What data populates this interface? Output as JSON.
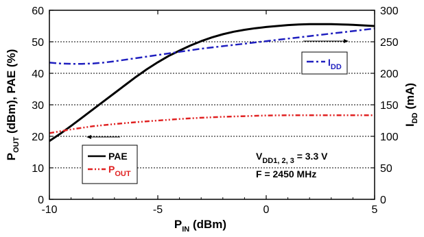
{
  "chart_data": {
    "type": "line",
    "x_axis": {
      "label_main": "P",
      "label_sub": "IN",
      "label_unit": " (dBm)",
      "range": [
        -10,
        5
      ],
      "ticks": [
        -10,
        -5,
        0,
        5
      ]
    },
    "y_left": {
      "label_parts": [
        {
          "t": "P"
        },
        {
          "t": "OUT",
          "sub": true
        },
        {
          "t": " (dBm), PAE (%)"
        }
      ],
      "range": [
        0,
        60
      ],
      "ticks": [
        0,
        10,
        20,
        30,
        40,
        50,
        60
      ]
    },
    "y_right": {
      "label_main": "I",
      "label_sub": "DD",
      "label_unit": " (mA)",
      "range": [
        0,
        300
      ],
      "ticks": [
        0,
        50,
        100,
        150,
        200,
        250,
        300
      ]
    },
    "grid": "horizontal-dotted",
    "series": [
      {
        "key": "pae",
        "axis": "left",
        "color": "#000000",
        "style": "solid",
        "x": [
          -10,
          -9.5,
          -9,
          -8.5,
          -8,
          -7.5,
          -7,
          -6.5,
          -6,
          -5.5,
          -5,
          -4.5,
          -4,
          -3.5,
          -3,
          -2.5,
          -2,
          -1.5,
          -1,
          -0.5,
          0,
          0.5,
          1,
          1.5,
          2,
          2.5,
          3,
          3.5,
          4,
          4.5,
          5
        ],
        "y": [
          18.5,
          20.8,
          23.3,
          25.9,
          28.5,
          31.1,
          33.7,
          36.3,
          38.9,
          41.3,
          43.5,
          45.5,
          47.2,
          48.8,
          50.2,
          51.4,
          52.4,
          53.2,
          53.8,
          54.3,
          54.7,
          55.0,
          55.3,
          55.5,
          55.6,
          55.6,
          55.6,
          55.5,
          55.4,
          55.2,
          55.0
        ]
      },
      {
        "key": "pout",
        "axis": "left",
        "color": "#e02020",
        "style": "dash-dot-dot",
        "x": [
          -10,
          -9,
          -8,
          -7,
          -6,
          -5,
          -4,
          -3,
          -2,
          -1,
          0,
          1,
          2,
          3,
          4,
          5
        ],
        "y": [
          21.0,
          22.2,
          23.2,
          23.9,
          24.5,
          25.0,
          25.5,
          25.9,
          26.2,
          26.4,
          26.6,
          26.7,
          26.7,
          26.7,
          26.7,
          26.7
        ]
      },
      {
        "key": "idd",
        "axis": "right",
        "color": "#1f1fbf",
        "style": "dash-dot",
        "x": [
          -10,
          -9.5,
          -9,
          -8.5,
          -8,
          -7.5,
          -7,
          -6.5,
          -6,
          -5.5,
          -5,
          -4.5,
          -4,
          -3.5,
          -3,
          -2.5,
          -2,
          -1.5,
          -1,
          -0.5,
          0,
          0.5,
          1,
          1.5,
          2,
          2.5,
          3,
          3.5,
          4,
          4.5,
          5
        ],
        "y": [
          217,
          215.5,
          215,
          215,
          215.5,
          217,
          219,
          221.5,
          224,
          226.5,
          229,
          231.5,
          234,
          236.5,
          239,
          241,
          243,
          245,
          247,
          249,
          251,
          253,
          255,
          257,
          259,
          261,
          263,
          265,
          267,
          269,
          271
        ]
      }
    ],
    "legend_main": {
      "entries": [
        {
          "series": "pae",
          "label_main": "PAE",
          "label_sub": ""
        },
        {
          "series": "pout",
          "label_main": "P",
          "label_sub": "OUT"
        }
      ]
    },
    "legend_idd": {
      "series": "idd",
      "label_main": "I",
      "label_sub": "DD"
    },
    "annotation": {
      "line1_main": "V",
      "line1_sub": "DD1, 2, 3",
      "line1_rest": " = 3.3 V",
      "line2": "F = 2450 MHz"
    },
    "colors": {
      "axis": "#000000",
      "grid": "#000000"
    }
  }
}
